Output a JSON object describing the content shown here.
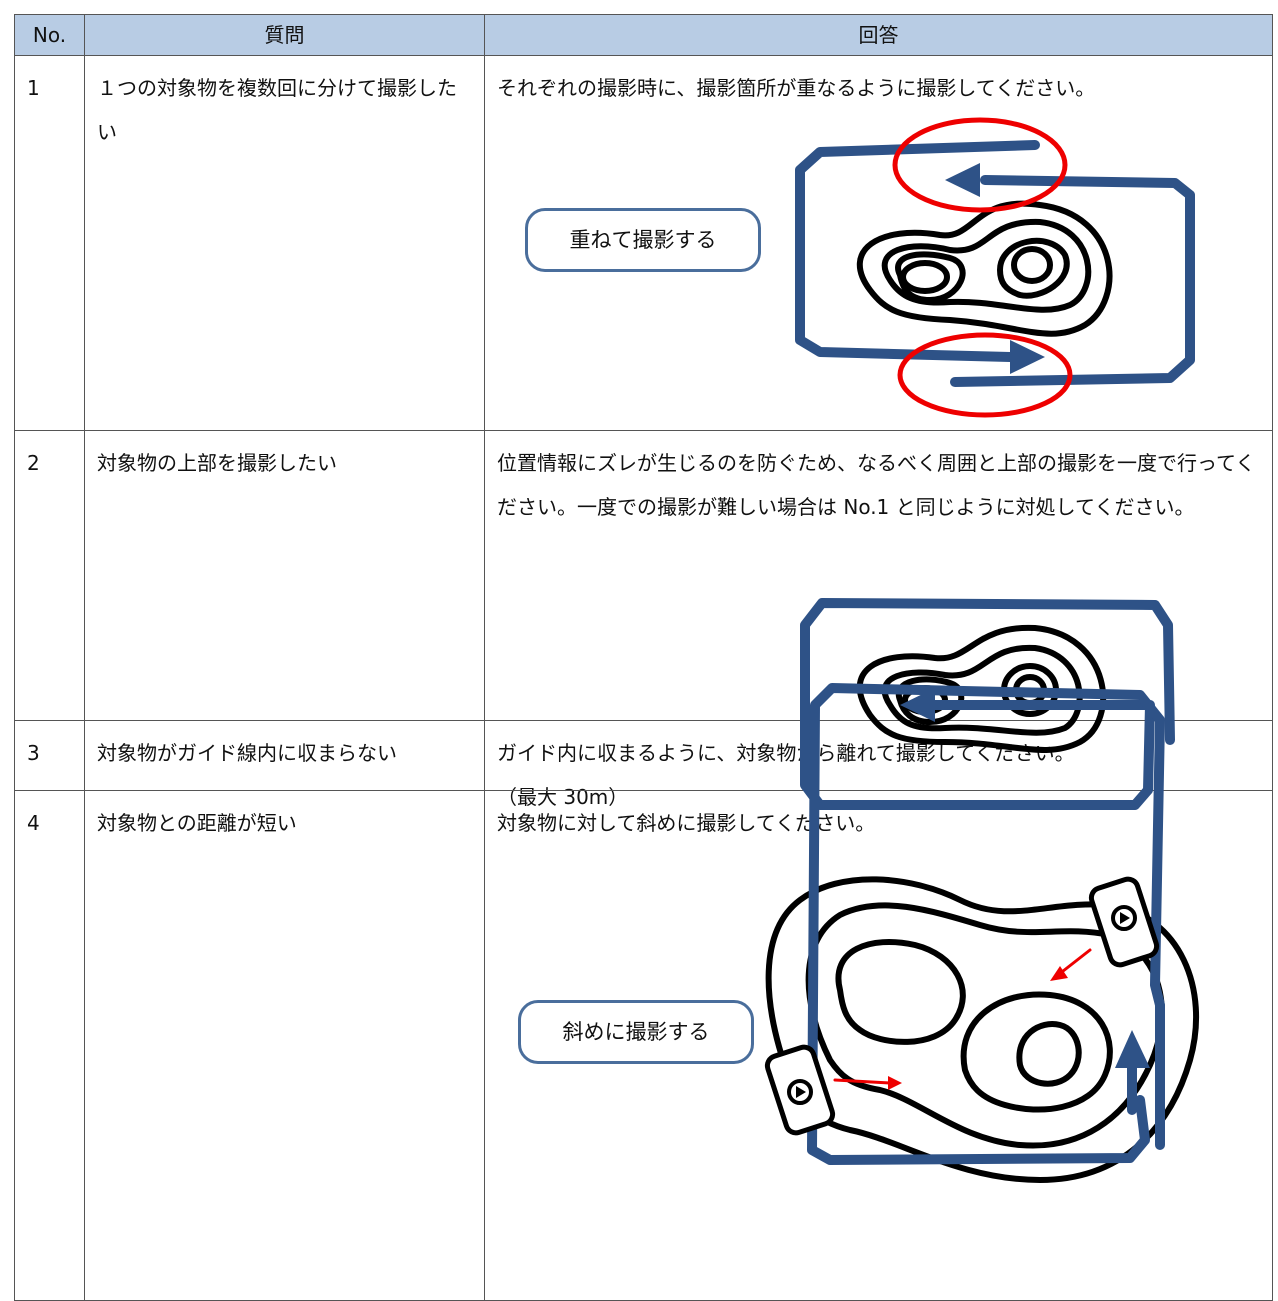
{
  "table": {
    "header": [
      "No.",
      "質問",
      "回答"
    ],
    "rows": [
      {
        "no": "1",
        "question": "１つの対象物を複数回に分けて撮影したい",
        "answer": [
          "それぞれの撮影時に、撮影箇所が重なるように撮影してください。"
        ],
        "callout": "重ねて撮影する"
      },
      {
        "no": "2",
        "question": "対象物の上部を撮影したい",
        "answer": [
          "位置情報にズレが生じるのを防ぐため、なるべく周囲と上部の撮影を一度で行ってください。一度での撮影が難しい場合は No.1 と同じように対処してください。"
        ]
      },
      {
        "no": "3",
        "question": "対象物がガイド線内に収まらない",
        "answer": [
          "ガイド内に収まるように、対象物から離れて撮影してください。",
          "（最大 30m）"
        ]
      },
      {
        "no": "4",
        "question": "対象物との距離が短い",
        "answer": [
          "対象物に対して斜めに撮影してください。"
        ],
        "callout": "斜めに撮影する"
      }
    ]
  }
}
